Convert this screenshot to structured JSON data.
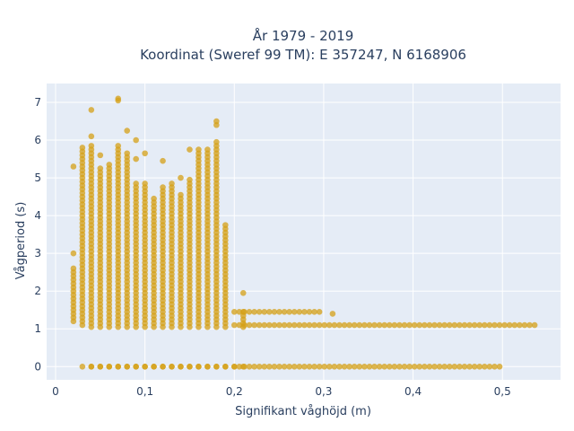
{
  "chart_data": {
    "type": "scatter",
    "title": [
      "År 1979 - 2019",
      "Koordinat (Sweref 99 TM): E 357247, N 6168906"
    ],
    "xlabel": "Signifikant våghöjd (m)",
    "ylabel": "Vågperiod (s)",
    "xlim": [
      -0.01,
      0.565
    ],
    "ylim": [
      -0.35,
      7.5
    ],
    "x_ticks": [
      0,
      0.1,
      0.2,
      0.3,
      0.4,
      0.5
    ],
    "x_tick_labels": [
      "0",
      "0,1",
      "0,2",
      "0,3",
      "0,4",
      "0,5"
    ],
    "y_ticks": [
      0,
      1,
      2,
      3,
      4,
      5,
      6,
      7
    ],
    "y_tick_labels": [
      "0",
      "1",
      "2",
      "3",
      "4",
      "5",
      "6",
      "7"
    ],
    "grid": true,
    "legend": "none",
    "marker_color": "#d4a017",
    "background_color": "#e5ecf6",
    "columns": [
      {
        "x": 0.02,
        "y_min": 1.2,
        "y_max": 2.6,
        "extra": [
          3.0,
          5.3
        ]
      },
      {
        "x": 0.03,
        "y_min": 1.1,
        "y_max": 5.8,
        "extra": [
          0
        ]
      },
      {
        "x": 0.04,
        "y_min": 1.05,
        "y_max": 5.9,
        "extra": [
          0,
          6.8,
          6.1
        ]
      },
      {
        "x": 0.05,
        "y_min": 1.05,
        "y_max": 5.3,
        "extra": [
          0,
          5.6
        ]
      },
      {
        "x": 0.06,
        "y_min": 1.05,
        "y_max": 5.4,
        "extra": [
          0
        ]
      },
      {
        "x": 0.07,
        "y_min": 1.05,
        "y_max": 5.9,
        "extra": [
          0,
          7.05,
          7.1
        ]
      },
      {
        "x": 0.08,
        "y_min": 1.05,
        "y_max": 5.7,
        "extra": [
          0,
          6.25
        ]
      },
      {
        "x": 0.09,
        "y_min": 1.05,
        "y_max": 4.9,
        "extra": [
          0,
          6.0,
          5.5
        ]
      },
      {
        "x": 0.1,
        "y_min": 1.05,
        "y_max": 4.9,
        "extra": [
          0,
          5.65
        ]
      },
      {
        "x": 0.11,
        "y_min": 1.05,
        "y_max": 4.5,
        "extra": [
          0
        ]
      },
      {
        "x": 0.12,
        "y_min": 1.05,
        "y_max": 4.8,
        "extra": [
          0,
          5.45
        ]
      },
      {
        "x": 0.13,
        "y_min": 1.05,
        "y_max": 4.9,
        "extra": [
          0
        ]
      },
      {
        "x": 0.14,
        "y_min": 1.05,
        "y_max": 4.6,
        "extra": [
          0,
          5.0
        ]
      },
      {
        "x": 0.15,
        "y_min": 1.05,
        "y_max": 5.0,
        "extra": [
          0,
          5.75
        ]
      },
      {
        "x": 0.16,
        "y_min": 1.05,
        "y_max": 5.8,
        "extra": [
          0
        ]
      },
      {
        "x": 0.17,
        "y_min": 1.05,
        "y_max": 5.7,
        "extra": [
          0,
          5.75
        ]
      },
      {
        "x": 0.18,
        "y_min": 1.05,
        "y_max": 6.0,
        "extra": [
          0,
          6.4,
          6.5
        ]
      },
      {
        "x": 0.19,
        "y_min": 1.05,
        "y_max": 3.8,
        "extra": [
          0
        ]
      },
      {
        "x": 0.21,
        "y_min": 1.05,
        "y_max": 1.45,
        "extra": [
          0,
          1.95
        ]
      }
    ],
    "bands": [
      {
        "y": 1.45,
        "x_from": 0.2,
        "x_to": 0.3,
        "step": 0.0056
      },
      {
        "y": 1.4,
        "x_from": 0.31,
        "x_to": 0.31,
        "step": 0.01
      },
      {
        "y": 1.1,
        "x_from": 0.2,
        "x_to": 0.54,
        "step": 0.0056
      },
      {
        "y": 0.0,
        "x_from": 0.2,
        "x_to": 0.5,
        "step": 0.0056
      },
      {
        "y": 0.0,
        "x_from": 0.04,
        "x_to": 0.2,
        "step": 0.01
      }
    ]
  }
}
